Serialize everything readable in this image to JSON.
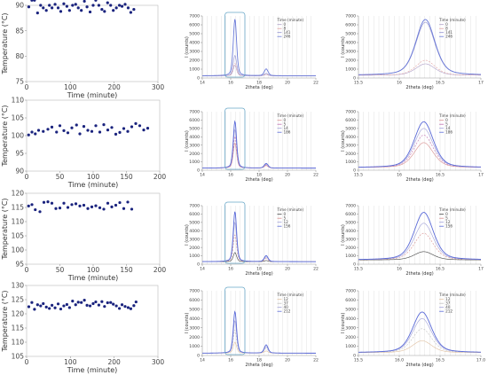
{
  "chart_data": [
    {
      "id": "t90",
      "type": "scatter",
      "xlabel": "Time (minute)",
      "ylabel": "Temperature (°C)",
      "xlim": [
        0,
        300
      ],
      "ylim": [
        75,
        90
      ],
      "xticks": [
        0,
        100,
        200,
        300
      ],
      "yticks": [
        75,
        80,
        85,
        90
      ],
      "color": "#1a237e",
      "series": [
        {
          "x": [
            5,
            12,
            18,
            25,
            32,
            38,
            45,
            52,
            58,
            65,
            72,
            78,
            85,
            92,
            98,
            105,
            112,
            118,
            125,
            132,
            138,
            145,
            152,
            158,
            165,
            172,
            178,
            185,
            192,
            198,
            205,
            212,
            218,
            225,
            232,
            238,
            245
          ],
          "y": [
            89.7,
            91.0,
            91.0,
            88.5,
            90.0,
            89.5,
            89.0,
            90.0,
            89.5,
            90.2,
            89.5,
            88.8,
            90.3,
            89.8,
            89.0,
            90.0,
            90.2,
            89.5,
            89.0,
            90.8,
            89.7,
            88.7,
            90.0,
            91.0,
            90.0,
            89.2,
            88.8,
            90.5,
            90.0,
            89.0,
            89.5,
            90.0,
            89.8,
            90.2,
            89.5,
            88.6,
            89.2
          ]
        }
      ]
    },
    {
      "id": "t100",
      "type": "scatter",
      "xlabel": "Time (minute)",
      "ylabel": "Temperature (°C)",
      "xlim": [
        0,
        200
      ],
      "ylim": [
        90,
        110
      ],
      "xticks": [
        0,
        50,
        100,
        150,
        200
      ],
      "yticks": [
        90,
        95,
        100,
        105,
        110
      ],
      "color": "#1a237e",
      "series": [
        {
          "x": [
            3,
            8,
            13,
            18,
            25,
            32,
            38,
            45,
            50,
            56,
            62,
            68,
            75,
            80,
            86,
            92,
            98,
            104,
            110,
            116,
            122,
            128,
            134,
            140,
            146,
            152,
            158,
            164,
            170,
            176,
            182
          ],
          "y": [
            100.2,
            101.0,
            100.5,
            101.5,
            101.2,
            101.8,
            102.4,
            101.0,
            102.8,
            101.4,
            100.8,
            102.2,
            103.0,
            100.5,
            102.6,
            101.5,
            101.2,
            102.8,
            101.0,
            103.1,
            101.6,
            102.3,
            100.4,
            100.9,
            102.0,
            101.2,
            102.5,
            103.4,
            102.8,
            101.6,
            102.1
          ]
        }
      ]
    },
    {
      "id": "t115",
      "type": "scatter",
      "xlabel": "Time (minute)",
      "ylabel": "Temperature (°C)",
      "xlim": [
        0,
        200
      ],
      "ylim": [
        95,
        120
      ],
      "xticks": [
        0,
        50,
        100,
        150,
        200
      ],
      "yticks": [
        95,
        100,
        105,
        110,
        115,
        120
      ],
      "color": "#1a237e",
      "series": [
        {
          "x": [
            3,
            8,
            13,
            20,
            26,
            32,
            38,
            44,
            50,
            56,
            62,
            68,
            74,
            80,
            86,
            92,
            98,
            104,
            110,
            116,
            122,
            128,
            134,
            140,
            146,
            152,
            158
          ],
          "y": [
            115.5,
            116.0,
            114.2,
            113.5,
            116.8,
            117.0,
            116.5,
            114.6,
            114.8,
            116.5,
            115.0,
            116.0,
            116.3,
            115.5,
            115.8,
            114.6,
            115.2,
            115.6,
            114.9,
            114.4,
            116.5,
            115.2,
            115.8,
            116.7,
            114.6,
            116.9,
            114.4
          ]
        }
      ]
    },
    {
      "id": "t123",
      "type": "scatter",
      "xlabel": "Time (minute)",
      "ylabel": "Temperature (°C)",
      "xlim": [
        0,
        300
      ],
      "ylim": [
        105,
        130
      ],
      "xticks": [
        0,
        100,
        200,
        300
      ],
      "yticks": [
        105,
        110,
        115,
        120,
        125,
        130
      ],
      "color": "#1a237e",
      "series": [
        {
          "x": [
            5,
            12,
            18,
            25,
            32,
            38,
            45,
            52,
            58,
            65,
            72,
            78,
            85,
            92,
            98,
            105,
            112,
            118,
            125,
            132,
            138,
            145,
            152,
            158,
            165,
            172,
            178,
            185,
            192,
            198,
            205,
            212,
            218,
            225,
            232,
            238,
            245,
            250
          ],
          "y": [
            122.5,
            124.0,
            121.6,
            123.2,
            122.8,
            123.6,
            122.4,
            121.9,
            123.0,
            122.1,
            123.5,
            121.7,
            122.8,
            123.3,
            122.2,
            124.5,
            123.2,
            124.1,
            124.0,
            124.8,
            123.0,
            122.8,
            123.6,
            124.2,
            123.1,
            124.3,
            122.6,
            123.9,
            124.0,
            123.4,
            122.8,
            121.9,
            123.2,
            122.6,
            122.2,
            121.8,
            122.9,
            124.2
          ]
        }
      ]
    },
    {
      "id": "x90",
      "type": "line",
      "xlabel": "2theta (deg)",
      "ylabel": "I (counts)",
      "xlim": [
        14,
        22
      ],
      "ylim": [
        0,
        7000
      ],
      "xticks": [
        14,
        16,
        18,
        20,
        22
      ],
      "yticks": [
        0,
        1000,
        2000,
        3000,
        4000,
        5000,
        6000,
        7000
      ],
      "peaks": [
        {
          "c": 16.3,
          "w": 0.14
        },
        {
          "c": 18.5,
          "w": 0.16
        }
      ],
      "peak_scale": [
        1,
        0.12
      ],
      "base": 250,
      "legend_title": "Time (minute)",
      "legend": [
        "0",
        "8",
        "141",
        "246"
      ],
      "colors": [
        "#b0a0c8",
        "#e0a0a0",
        "#9090d0",
        "#6a7ad8"
      ],
      "amps": [
        1200,
        1400,
        2300,
        6400
      ],
      "box_xlim": [
        15.6,
        17.0
      ]
    },
    {
      "id": "x100",
      "type": "line",
      "xlabel": "2theta (deg)",
      "ylabel": "I (counts)",
      "xlim": [
        14,
        22
      ],
      "ylim": [
        0,
        7000
      ],
      "xticks": [
        14,
        16,
        18,
        20,
        22
      ],
      "yticks": [
        0,
        1000,
        2000,
        3000,
        4000,
        5000,
        6000,
        7000
      ],
      "peaks": [
        {
          "c": 16.3,
          "w": 0.14
        },
        {
          "c": 18.5,
          "w": 0.16
        }
      ],
      "peak_scale": [
        1,
        0.1
      ],
      "base": 250,
      "legend_title": "Time (minute)",
      "legend": [
        "0",
        "5",
        "14",
        "186"
      ],
      "colors": [
        "#d89090",
        "#c070b0",
        "#a0a0d8",
        "#5a6ad8"
      ],
      "amps": [
        3000,
        3800,
        4600,
        5600
      ],
      "box_xlim": [
        15.6,
        17.0
      ]
    },
    {
      "id": "x115",
      "type": "line",
      "xlabel": "2theta (deg)",
      "ylabel": "I (counts)",
      "xlim": [
        14,
        22
      ],
      "ylim": [
        0,
        7000
      ],
      "xticks": [
        14,
        16,
        18,
        20,
        22
      ],
      "yticks": [
        0,
        1000,
        2000,
        3000,
        4000,
        5000,
        6000,
        7000
      ],
      "peaks": [
        {
          "c": 16.3,
          "w": 0.14
        },
        {
          "c": 18.5,
          "w": 0.16
        }
      ],
      "peak_scale": [
        1,
        0.12
      ],
      "base": 300,
      "legend_title": "Time (minute)",
      "legend": [
        "0",
        "5",
        "12",
        "156"
      ],
      "colors": [
        "#404040",
        "#d89090",
        "#a0a0d8",
        "#5a6ad8"
      ],
      "amps": [
        1100,
        3200,
        4700,
        6000
      ],
      "box_xlim": [
        15.6,
        17.0
      ]
    },
    {
      "id": "x123",
      "type": "line",
      "xlabel": "2theta (deg)",
      "ylabel": "I (counts)",
      "xlim": [
        14,
        22
      ],
      "ylim": [
        0,
        7000
      ],
      "xticks": [
        14,
        16,
        18,
        20,
        22
      ],
      "yticks": [
        0,
        1000,
        2000,
        3000,
        4000,
        5000,
        6000,
        7000
      ],
      "peaks": [
        {
          "c": 16.3,
          "w": 0.14
        },
        {
          "c": 18.5,
          "w": 0.16
        }
      ],
      "peak_scale": [
        1,
        0.2
      ],
      "base": 250,
      "legend_title": "Time (minute)",
      "legend": [
        "12",
        "37",
        "40",
        "212"
      ],
      "colors": [
        "#e0c0a0",
        "#c0c0c0",
        "#a0a0d8",
        "#5a6ad8"
      ],
      "amps": [
        1200,
        2500,
        3500,
        4500
      ],
      "box_xlim": [
        15.6,
        17.0
      ]
    },
    {
      "id": "z90",
      "type": "line",
      "xlabel": "2theta (deg)",
      "ylabel": "I (counts)",
      "xlim": [
        15.5,
        17
      ],
      "ylim": [
        0,
        7000
      ],
      "xticks": [
        15.5,
        16,
        16.5,
        17
      ],
      "yticks": [
        0,
        1000,
        2000,
        3000,
        4000,
        5000,
        6000,
        7000
      ],
      "peaks": [
        {
          "c": 16.32,
          "w": 0.14
        }
      ],
      "peak_scale": [
        1
      ],
      "base": 300,
      "legend_title": "Time (minute)",
      "legend": [
        "0",
        "8",
        "141",
        "246"
      ],
      "colors": [
        "#b0a0c8",
        "#e0a0a0",
        "#9090d0",
        "#6a7ad8"
      ],
      "amps": [
        1300,
        1700,
        6000,
        6300
      ]
    },
    {
      "id": "z100",
      "type": "line",
      "xlabel": "2theta (deg)",
      "ylabel": "I (counts)",
      "xlim": [
        15.5,
        17
      ],
      "ylim": [
        0,
        7000
      ],
      "xticks": [
        15.5,
        16,
        16.5,
        17
      ],
      "yticks": [
        0,
        1000,
        2000,
        3000,
        4000,
        5000,
        6000,
        7000
      ],
      "peaks": [
        {
          "c": 16.3,
          "w": 0.14
        }
      ],
      "peak_scale": [
        1
      ],
      "base": 300,
      "legend_title": "Time (minute)",
      "legend": [
        "0",
        "5",
        "14",
        "186"
      ],
      "colors": [
        "#d89090",
        "#c070b0",
        "#a0a0d8",
        "#5a6ad8"
      ],
      "amps": [
        3000,
        3900,
        4700,
        5500
      ]
    },
    {
      "id": "z115",
      "type": "line",
      "xlabel": "2theta (deg)",
      "ylabel": "I (counts)",
      "xlim": [
        15.5,
        17
      ],
      "ylim": [
        0,
        7000
      ],
      "xticks": [
        15.5,
        16,
        16.5,
        17
      ],
      "yticks": [
        0,
        1000,
        2000,
        3000,
        4000,
        5000,
        6000,
        7000
      ],
      "peaks": [
        {
          "c": 16.3,
          "w": 0.14
        }
      ],
      "peak_scale": [
        1
      ],
      "base": 500,
      "legend_title": "Time (minute)",
      "legend": [
        "0",
        "5",
        "12",
        "156"
      ],
      "colors": [
        "#404040",
        "#d89090",
        "#a0a0d8",
        "#5a6ad8"
      ],
      "amps": [
        1000,
        3200,
        4400,
        5700
      ]
    },
    {
      "id": "z123",
      "type": "line",
      "xlabel": "2theta (deg)",
      "ylabel": "I (counts)",
      "xlim": [
        15.5,
        17
      ],
      "ylim": [
        0,
        7000
      ],
      "xticks": [
        15.5,
        16,
        16.5,
        17
      ],
      "yticks": [
        0,
        1000,
        2000,
        3000,
        4000,
        5000,
        6000,
        7000
      ],
      "peaks": [
        {
          "c": 16.28,
          "w": 0.14
        }
      ],
      "peak_scale": [
        1
      ],
      "base": 300,
      "legend_title": "Time (minute)",
      "legend": [
        "12",
        "37",
        "40",
        "212"
      ],
      "colors": [
        "#e0c0a0",
        "#c0c0c0",
        "#a0a0d8",
        "#5a6ad8"
      ],
      "amps": [
        1300,
        2600,
        3700,
        4400
      ],
      "xtick_labels": [
        "15.5",
        "16.0",
        "16.5",
        "17.0"
      ]
    }
  ]
}
